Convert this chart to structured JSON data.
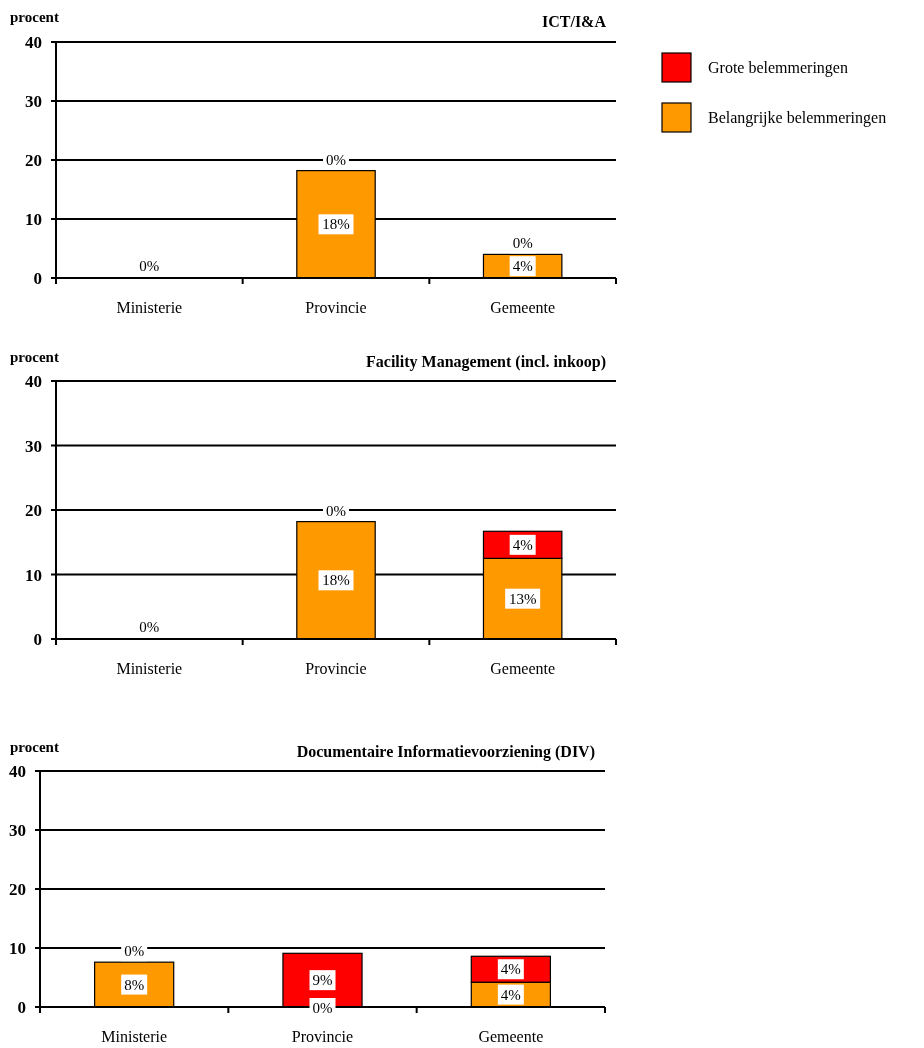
{
  "chart_data": [
    {
      "type": "bar",
      "title": "ICT/I&A",
      "ylabel": "procent",
      "stacked": true,
      "categories": [
        "Ministerie",
        "Provincie",
        "Gemeente"
      ],
      "ylim": [
        0,
        40
      ],
      "yticks": [
        0,
        10,
        20,
        30,
        40
      ],
      "grid": "y",
      "legend": "top right",
      "series": [
        {
          "name": "Belangrijke belemmeringen",
          "color": "#ff9900",
          "values": [
            0,
            18.2,
            4
          ],
          "value_labels": [
            "0%",
            "18%",
            "4%"
          ]
        },
        {
          "name": "Grote belemmeringen",
          "color": "#ff0000",
          "values": [
            0,
            0,
            0
          ],
          "value_labels": [
            null,
            "0%",
            "0%"
          ]
        }
      ]
    },
    {
      "type": "bar",
      "title": "Facility Management (incl. inkoop)",
      "ylabel": "procent",
      "stacked": true,
      "categories": [
        "Ministerie",
        "Provincie",
        "Gemeente"
      ],
      "ylim": [
        0,
        40
      ],
      "yticks": [
        0,
        10,
        20,
        30,
        40
      ],
      "grid": "y",
      "series": [
        {
          "color": "#ff9900",
          "values": [
            0,
            18.2,
            12.5
          ],
          "value_labels": [
            "0%",
            "18%",
            "13%"
          ]
        },
        {
          "color": "#ff0000",
          "values": [
            0,
            0,
            4.2
          ],
          "value_labels": [
            null,
            "0%",
            "4%"
          ]
        }
      ]
    },
    {
      "type": "bar",
      "title": "Documentaire Informatievoorziening (DIV)",
      "ylabel": "procent",
      "stacked": true,
      "categories": [
        "Ministerie",
        "Provincie",
        "Gemeente"
      ],
      "ylim": [
        0,
        40
      ],
      "yticks": [
        0,
        10,
        20,
        30,
        40
      ],
      "grid": "y",
      "series": [
        {
          "color": "#ff9900",
          "values": [
            7.6,
            0,
            4.2
          ],
          "value_labels": [
            "8%",
            "0%",
            "4%"
          ]
        },
        {
          "color": "#ff0000",
          "values": [
            0,
            9.1,
            4.4
          ],
          "value_labels": [
            "0%",
            "9%",
            "4%"
          ]
        }
      ]
    }
  ]
}
